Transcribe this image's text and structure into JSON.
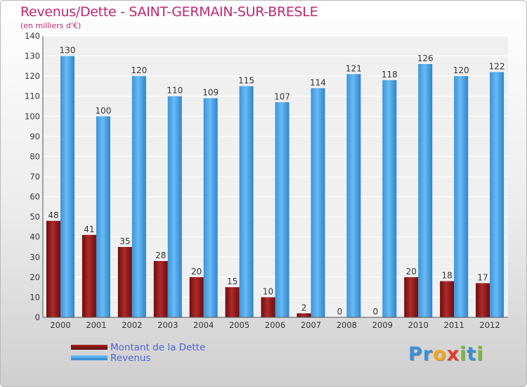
{
  "chart_data": {
    "type": "bar",
    "title": "Revenus/Dette - SAINT-GERMAIN-SUR-BRESLE",
    "subtitle": "(en milliers d'€)",
    "categories": [
      "2000",
      "2001",
      "2002",
      "2003",
      "2004",
      "2005",
      "2006",
      "2007",
      "2008",
      "2009",
      "2010",
      "2011",
      "2012"
    ],
    "series": [
      {
        "name": "Montant de la Dette",
        "values": [
          48,
          41,
          35,
          28,
          20,
          15,
          10,
          2,
          0,
          0,
          20,
          18,
          17
        ],
        "color": "#8a1a1a"
      },
      {
        "name": "Revenus",
        "values": [
          130,
          100,
          120,
          110,
          109,
          115,
          107,
          114,
          121,
          118,
          126,
          120,
          122
        ],
        "color": "#4aa3e6"
      }
    ],
    "ylim": [
      0,
      140
    ],
    "yticks": [
      0,
      10,
      20,
      30,
      40,
      50,
      60,
      70,
      80,
      90,
      100,
      110,
      120,
      130,
      140
    ],
    "grid": true,
    "legend_position": "bottom-left"
  },
  "brand": {
    "letters": [
      {
        "ch": "P",
        "color": "#3b8fd8"
      },
      {
        "ch": "r",
        "color": "#3b8fd8"
      },
      {
        "ch": "o",
        "color": "#f2a51f"
      },
      {
        "ch": "x",
        "color": "#e43c25"
      },
      {
        "ch": "i",
        "color": "#7ab83a"
      },
      {
        "ch": "t",
        "color": "#3b8fd8"
      },
      {
        "ch": "i",
        "color": "#7ab83a"
      }
    ]
  }
}
